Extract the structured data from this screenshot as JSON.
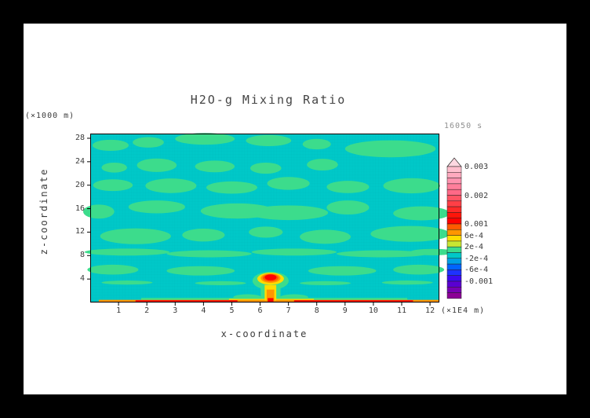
{
  "page": {
    "title": "H2O-g Mixing Ratio",
    "time_label": "16050 s"
  },
  "axes": {
    "x": {
      "label": "x-coordinate",
      "unit": "(×1E4 m)"
    },
    "z": {
      "label": "z-coordinate",
      "unit": "(×1000 m)"
    }
  },
  "chart_data": {
    "type": "heatmap",
    "title": "H2O-g Mixing Ratio",
    "time_label": "16050 s",
    "xlabel": "x-coordinate",
    "x_unit": "(×1E4 m)",
    "ylabel": "z-coordinate",
    "y_unit": "(×1000 m)",
    "xlim": [
      0,
      12.33
    ],
    "ylim": [
      0,
      28.8
    ],
    "x_ticks": [
      1,
      2,
      3,
      4,
      5,
      6,
      7,
      8,
      9,
      10,
      11,
      12
    ],
    "z_ticks": [
      4,
      8,
      12,
      16,
      20,
      24,
      28
    ],
    "grid": true,
    "legend_position": "right",
    "levels": {
      "min": -0.0016,
      "max": 0.003,
      "step": 0.0002
    },
    "colorbar_labels": [
      {
        "text": "0.003",
        "band": 0
      },
      {
        "text": "0.002",
        "band": 5
      },
      {
        "text": "0.001",
        "band": 10
      },
      {
        "text": "6e-4",
        "band": 12
      },
      {
        "text": "2e-4",
        "band": 14
      },
      {
        "text": "-2e-4",
        "band": 16
      },
      {
        "text": "-6e-4",
        "band": 18
      },
      {
        "text": "-0.001",
        "band": 20
      }
    ],
    "cap_color": "#FFD8E1",
    "band_colors_top_to_bottom": [
      "#FFBECD",
      "#FFA9BE",
      "#FF93AF",
      "#FF7E9B",
      "#FF6987",
      "#FF5464",
      "#FF3F46",
      "#FF2A28",
      "#FF150A",
      "#FF0000",
      "#FF5A00",
      "#FF9600",
      "#FFDC00",
      "#C8E632",
      "#3CDC8C",
      "#00C8C8",
      "#00A0E6",
      "#0064FF",
      "#1E32FF",
      "#3C0AF0",
      "#5A00D2",
      "#7800B4",
      "#8C0096"
    ],
    "colors": {
      "background": "#00C8C8",
      "blob": "#3CDC8C",
      "mesh": "#00B0B4",
      "frame": "#000000"
    },
    "background_band": "-2e-4 to 0",
    "blob_band": "0 to 2e-4",
    "green_blobs": [
      {
        "x": 0.72,
        "z": 26.8,
        "rx": 0.64,
        "rz": 0.95
      },
      {
        "x": 2.05,
        "z": 27.3,
        "rx": 0.55,
        "rz": 0.9
      },
      {
        "x": 4.05,
        "z": 27.9,
        "rx": 1.05,
        "rz": 1.0
      },
      {
        "x": 6.3,
        "z": 27.6,
        "rx": 0.8,
        "rz": 0.95
      },
      {
        "x": 8.0,
        "z": 27.0,
        "rx": 0.5,
        "rz": 0.9
      },
      {
        "x": 10.6,
        "z": 26.2,
        "rx": 1.6,
        "rz": 1.45
      },
      {
        "x": 0.85,
        "z": 23.0,
        "rx": 0.45,
        "rz": 0.85
      },
      {
        "x": 2.35,
        "z": 23.4,
        "rx": 0.7,
        "rz": 1.15
      },
      {
        "x": 4.4,
        "z": 23.2,
        "rx": 0.7,
        "rz": 1.0
      },
      {
        "x": 6.2,
        "z": 22.9,
        "rx": 0.55,
        "rz": 0.95
      },
      {
        "x": 8.2,
        "z": 23.5,
        "rx": 0.55,
        "rz": 1.0
      },
      {
        "x": 0.8,
        "z": 20.0,
        "rx": 0.7,
        "rz": 1.0
      },
      {
        "x": 2.85,
        "z": 19.9,
        "rx": 0.9,
        "rz": 1.25
      },
      {
        "x": 5.0,
        "z": 19.6,
        "rx": 0.9,
        "rz": 1.05
      },
      {
        "x": 7.0,
        "z": 20.3,
        "rx": 0.75,
        "rz": 1.1
      },
      {
        "x": 9.1,
        "z": 19.7,
        "rx": 0.75,
        "rz": 1.05
      },
      {
        "x": 11.35,
        "z": 19.9,
        "rx": 1.0,
        "rz": 1.3
      },
      {
        "x": 0.3,
        "z": 15.5,
        "rx": 0.55,
        "rz": 1.2
      },
      {
        "x": 2.35,
        "z": 16.3,
        "rx": 1.0,
        "rz": 1.1
      },
      {
        "x": 5.2,
        "z": 15.6,
        "rx": 1.3,
        "rz": 1.3
      },
      {
        "x": 7.0,
        "z": 15.3,
        "rx": 1.4,
        "rz": 1.25
      },
      {
        "x": 9.1,
        "z": 16.2,
        "rx": 0.75,
        "rz": 1.2
      },
      {
        "x": 11.7,
        "z": 15.2,
        "rx": 1.0,
        "rz": 1.2
      },
      {
        "x": 1.6,
        "z": 11.3,
        "rx": 1.25,
        "rz": 1.35
      },
      {
        "x": 4.0,
        "z": 11.5,
        "rx": 0.75,
        "rz": 1.1
      },
      {
        "x": 6.2,
        "z": 12.0,
        "rx": 0.6,
        "rz": 0.95
      },
      {
        "x": 8.3,
        "z": 11.2,
        "rx": 0.9,
        "rz": 1.2
      },
      {
        "x": 11.3,
        "z": 11.7,
        "rx": 1.4,
        "rz": 1.35
      },
      {
        "x": 1.3,
        "z": 8.6,
        "rx": 1.5,
        "rz": 0.6
      },
      {
        "x": 4.2,
        "z": 8.3,
        "rx": 1.5,
        "rz": 0.6
      },
      {
        "x": 7.2,
        "z": 8.6,
        "rx": 1.5,
        "rz": 0.6
      },
      {
        "x": 10.3,
        "z": 8.3,
        "rx": 1.6,
        "rz": 0.6
      },
      {
        "x": 12.1,
        "z": 8.6,
        "rx": 0.8,
        "rz": 0.55
      },
      {
        "x": 0.8,
        "z": 5.6,
        "rx": 0.9,
        "rz": 0.85
      },
      {
        "x": 3.9,
        "z": 5.4,
        "rx": 1.2,
        "rz": 0.8
      },
      {
        "x": 8.9,
        "z": 5.4,
        "rx": 1.2,
        "rz": 0.8
      },
      {
        "x": 11.6,
        "z": 5.6,
        "rx": 0.9,
        "rz": 0.85
      },
      {
        "x": 1.3,
        "z": 3.4,
        "rx": 0.9,
        "rz": 0.35
      },
      {
        "x": 4.6,
        "z": 3.3,
        "rx": 0.9,
        "rz": 0.35
      },
      {
        "x": 8.3,
        "z": 3.3,
        "rx": 0.9,
        "rz": 0.35
      },
      {
        "x": 11.2,
        "z": 3.4,
        "rx": 0.9,
        "rz": 0.35
      },
      {
        "x": 5.55,
        "z": 0.9,
        "rx": 0.5,
        "rz": 0.5
      },
      {
        "x": 7.2,
        "z": 0.9,
        "rx": 0.5,
        "rz": 0.5
      }
    ],
    "surface_strips": [
      {
        "x1": 1.8,
        "x2": 11.2,
        "z1": 0.45,
        "z2": 0.8,
        "color": "#3CDC8C"
      },
      {
        "x1": 4.9,
        "x2": 7.9,
        "z1": 0.3,
        "z2": 0.62,
        "color": "#FFDC00"
      },
      {
        "x1": 0.3,
        "x2": 12.33,
        "z1": 0.0,
        "z2": 0.45,
        "color": "#FF9600"
      },
      {
        "x1": 1.6,
        "x2": 5.2,
        "z1": 0.05,
        "z2": 0.4,
        "color": "#FF1400"
      },
      {
        "x1": 7.2,
        "x2": 11.4,
        "z1": 0.05,
        "z2": 0.4,
        "color": "#FF1400"
      }
    ],
    "plume_layers": [
      {
        "color": "#3CDC8C",
        "cap": {
          "x": 6.37,
          "z": 3.7,
          "rx": 0.64,
          "rz": 1.55
        },
        "stem": {
          "x1": 6.02,
          "x2": 6.72,
          "z1": 0.7,
          "z2": 2.6
        }
      },
      {
        "color": "#FFDC00",
        "cap": {
          "x": 6.37,
          "z": 4.05,
          "rx": 0.47,
          "rz": 1.02
        },
        "stem": {
          "x1": 6.16,
          "x2": 6.57,
          "z1": 0.35,
          "z2": 3.0
        }
      },
      {
        "color": "#FF9600",
        "cap": {
          "x": 6.37,
          "z": 4.15,
          "rx": 0.35,
          "rz": 0.8
        },
        "stem": {
          "x1": 6.23,
          "x2": 6.5,
          "z1": 0.3,
          "z2": 2.2
        }
      },
      {
        "color": "#FF5A00",
        "cap": {
          "x": 6.37,
          "z": 4.2,
          "rx": 0.28,
          "rz": 0.64
        }
      },
      {
        "color": "#FF0000",
        "cap": {
          "x": 6.37,
          "z": 4.28,
          "rx": 0.21,
          "rz": 0.5
        },
        "stem": {
          "x1": 6.27,
          "x2": 6.47,
          "z1": 0.05,
          "z2": 0.75
        }
      }
    ]
  }
}
